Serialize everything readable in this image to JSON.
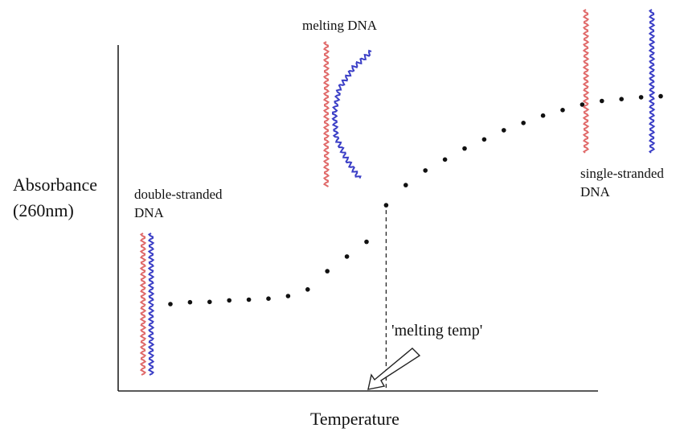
{
  "chart_data": {
    "type": "scatter",
    "xlabel": "Temperature",
    "ylabel": [
      "Absorbance",
      "(260nm)"
    ],
    "axis_ticks": false,
    "grid": false,
    "series": [
      {
        "points": [
          [
            1,
            1.0
          ],
          [
            2,
            1.05
          ],
          [
            3,
            1.06
          ],
          [
            4,
            1.1
          ],
          [
            5,
            1.12
          ],
          [
            6,
            1.15
          ],
          [
            7,
            1.22
          ],
          [
            8,
            1.4
          ],
          [
            9,
            1.9
          ],
          [
            10,
            2.3
          ],
          [
            11,
            2.7
          ],
          [
            12,
            3.7
          ],
          [
            13,
            4.25
          ],
          [
            14,
            4.65
          ],
          [
            15,
            4.95
          ],
          [
            16,
            5.25
          ],
          [
            17,
            5.5
          ],
          [
            18,
            5.75
          ],
          [
            19,
            5.95
          ],
          [
            20,
            6.15
          ],
          [
            21,
            6.3
          ],
          [
            22,
            6.45
          ],
          [
            23,
            6.55
          ],
          [
            24,
            6.6
          ],
          [
            25,
            6.65
          ],
          [
            26,
            6.68
          ]
        ]
      }
    ],
    "melting_temp_x": 12
  },
  "annotations": {
    "double_stranded": [
      "double-stranded",
      "DNA"
    ],
    "melting_dna": "melting DNA",
    "single_stranded": [
      "single-stranded",
      "DNA"
    ],
    "melting_temp": "'melting temp'"
  },
  "colors": {
    "strand_a": "#e06a6a",
    "strand_b": "#3a3ec6",
    "points": "#111111"
  }
}
